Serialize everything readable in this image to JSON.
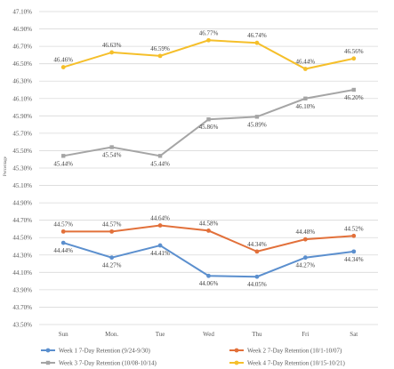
{
  "chart_data": {
    "type": "line",
    "ylabel": "Percentage",
    "ylim": [
      43.5,
      47.1
    ],
    "ytick_step": 0.2,
    "ytick_labels": [
      "43.50%",
      "43.70%",
      "43.90%",
      "44.10%",
      "44.30%",
      "44.50%",
      "44.70%",
      "44.90%",
      "45.10%",
      "45.30%",
      "45.50%",
      "45.70%",
      "45.90%",
      "46.10%",
      "46.30%",
      "46.50%",
      "46.70%",
      "46.90%",
      "47.10%"
    ],
    "categories": [
      "Sun",
      "Mon.",
      "Tue",
      "Wed",
      "Thu",
      "Fri",
      "Sat"
    ],
    "grid": true,
    "legend_position": "bottom",
    "series": [
      {
        "name": "Week 1 7-Day Retention (9/24-9/30)",
        "color": "#5b8fce",
        "values": [
          44.44,
          44.27,
          44.41,
          44.06,
          44.05,
          44.27,
          44.34
        ],
        "labels": [
          "44.44%",
          "44.27%",
          "44.41%",
          "44.06%",
          "44.05%",
          "44.27%",
          "44.34%"
        ]
      },
      {
        "name": "Week 2 7-Day Retention (10/1-10/07)",
        "color": "#e2703a",
        "values": [
          44.57,
          44.57,
          44.64,
          44.58,
          44.34,
          44.48,
          44.52
        ],
        "labels": [
          "44.57%",
          "44.57%",
          "44.64%",
          "44.58%",
          "44.34%",
          "44.48%",
          "44.52%"
        ]
      },
      {
        "name": "Week 3 7-Day Retention (10/08-10/14)",
        "color": "#a5a5a5",
        "values": [
          45.44,
          45.54,
          45.44,
          45.86,
          45.89,
          46.1,
          46.2
        ],
        "labels": [
          "45.44%",
          "45.54%",
          "45.44%",
          "45.86%",
          "45.89%",
          "46.10%",
          "46.20%"
        ]
      },
      {
        "name": "Week 4 7-Day Retention (10/15-10/21)",
        "color": "#f5bf2a",
        "values": [
          46.46,
          46.63,
          46.59,
          46.77,
          46.74,
          46.44,
          46.56
        ],
        "labels": [
          "46.46%",
          "46.63%",
          "46.59%",
          "46.77%",
          "46.74%",
          "46.44%",
          "46.56%"
        ]
      }
    ]
  }
}
